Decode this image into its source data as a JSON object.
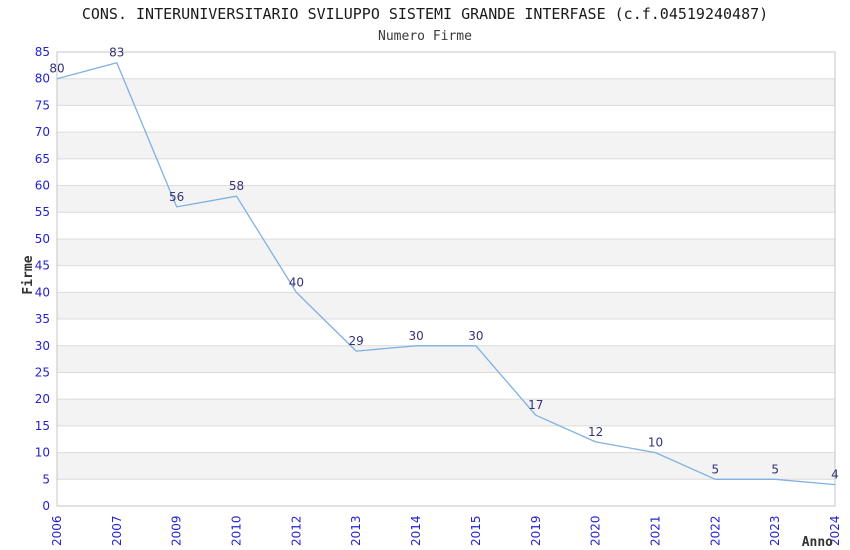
{
  "chart_data": {
    "type": "line",
    "title": "CONS. INTERUNIVERSITARIO SVILUPPO SISTEMI GRANDE INTERFASE (c.f.04519240487)",
    "subtitle": "Numero Firme",
    "xlabel": "Anno",
    "ylabel": "Firme",
    "categories": [
      "2006",
      "2007",
      "2009",
      "2010",
      "2012",
      "2013",
      "2014",
      "2015",
      "2019",
      "2020",
      "2021",
      "2022",
      "2023",
      "2024"
    ],
    "series": [
      {
        "name": "Numero Firme",
        "values": [
          80,
          83,
          56,
          58,
          40,
          29,
          30,
          30,
          17,
          12,
          10,
          5,
          5,
          4
        ]
      }
    ],
    "ylim": [
      0,
      85
    ],
    "ytick_step": 5,
    "grid": "horizontal",
    "plot_bands": "alternating",
    "legend_position": "none",
    "colors": {
      "line": "#7FB1E3",
      "data_label": "#333377",
      "tick_label": "#2323CF",
      "band_fill": "#F3F3F3",
      "gridline": "#DCDCDC",
      "plot_border": "#C6C6C6",
      "title_text": "#1A1A1A",
      "axis_title_text": "#333333"
    }
  }
}
